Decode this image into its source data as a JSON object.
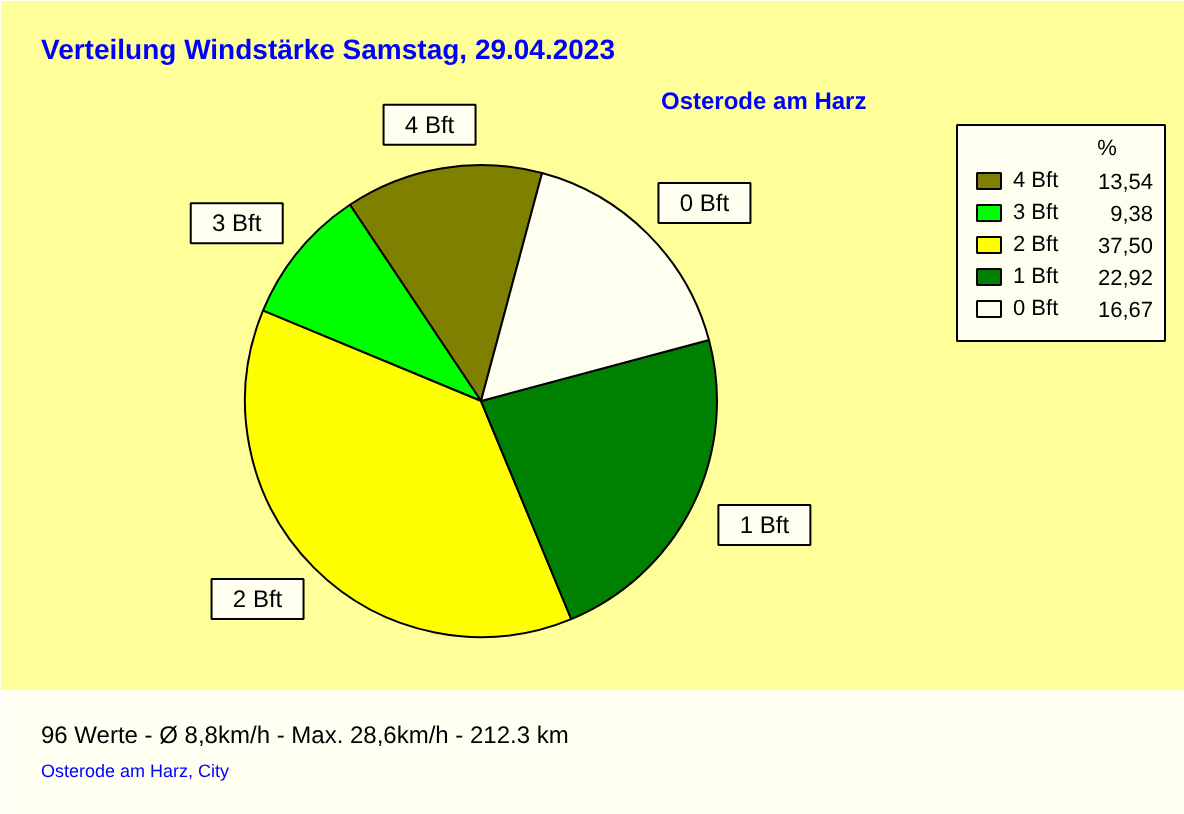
{
  "chart_data": {
    "type": "pie",
    "title": "Verteilung Windstärke  Samstag, 29.04.2023",
    "subtitle": "Osterode am Harz",
    "categories": [
      "4 Bft",
      "3 Bft",
      "2 Bft",
      "1 Bft",
      "0 Bft"
    ],
    "values": [
      13.54,
      9.38,
      37.5,
      22.92,
      16.67
    ],
    "value_labels": [
      "13,54",
      "9,38",
      "37,50",
      "22,92",
      "16,67"
    ],
    "colors": [
      "#808000",
      "#00ff00",
      "#ffff00",
      "#008000",
      "#fffff0"
    ],
    "legend_title": "%",
    "legend": "top right",
    "annotations": [
      "96 Werte   -   Ø 8,8km/h  -  Max. 28,6km/h   -   212.3 km",
      "Osterode am Harz, City"
    ]
  }
}
